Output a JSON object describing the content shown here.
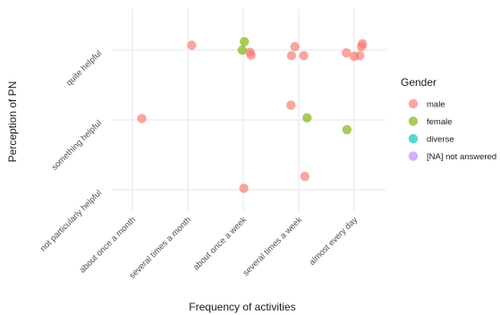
{
  "chart_data": {
    "type": "scatter",
    "title": "",
    "xlabel": "Frequency of activities",
    "ylabel": "Perception of PN",
    "x_categories": [
      "about once a month",
      "several times a month",
      "about once a week",
      "several times a week",
      "almost every day"
    ],
    "y_categories": [
      "not particularly helpful",
      "something helpful",
      "quite helpful"
    ],
    "grid": true,
    "legend": {
      "title": "Gender",
      "placement": "right",
      "entries": [
        {
          "name": "male",
          "color": "#f8766d"
        },
        {
          "name": "female",
          "color": "#7cae00"
        },
        {
          "name": "diverse",
          "color": "#00bfc4"
        },
        {
          "name": "[NA] not answered",
          "color": "#c77cff"
        }
      ]
    },
    "series": [
      {
        "name": "male",
        "color": "#f8766d",
        "points": [
          {
            "x": 1.17,
            "y": 2.02
          },
          {
            "x": 2.07,
            "y": 3.07
          },
          {
            "x": 3.12,
            "y": 2.97
          },
          {
            "x": 3.14,
            "y": 2.93
          },
          {
            "x": 3.01,
            "y": 1.02
          },
          {
            "x": 3.87,
            "y": 2.92
          },
          {
            "x": 3.93,
            "y": 3.05
          },
          {
            "x": 4.09,
            "y": 2.92
          },
          {
            "x": 3.86,
            "y": 2.21
          },
          {
            "x": 4.11,
            "y": 1.19
          },
          {
            "x": 4.86,
            "y": 2.96
          },
          {
            "x": 5.0,
            "y": 2.91
          },
          {
            "x": 5.1,
            "y": 2.92
          },
          {
            "x": 5.13,
            "y": 3.05
          },
          {
            "x": 5.15,
            "y": 3.09
          }
        ]
      },
      {
        "name": "female",
        "color": "#7cae00",
        "points": [
          {
            "x": 3.02,
            "y": 3.12
          },
          {
            "x": 2.98,
            "y": 3.0
          },
          {
            "x": 4.15,
            "y": 2.03
          },
          {
            "x": 4.87,
            "y": 1.86
          }
        ]
      },
      {
        "name": "diverse",
        "color": "#00bfc4",
        "points": []
      },
      {
        "name": "[NA] not answered",
        "color": "#c77cff",
        "points": []
      }
    ]
  }
}
